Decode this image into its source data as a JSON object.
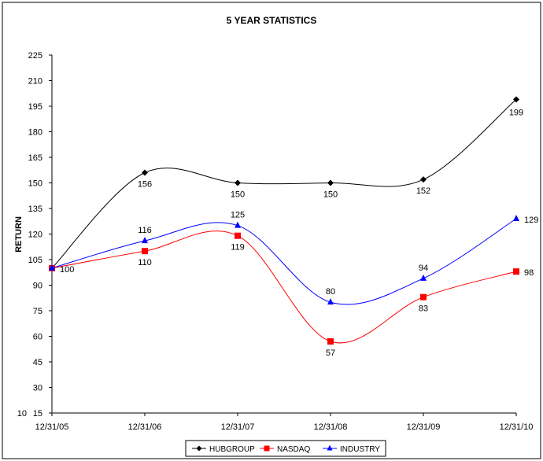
{
  "chart_data": {
    "type": "line",
    "title": "5 YEAR STATISTICS",
    "xlabel": "",
    "ylabel": "RETURN",
    "categories": [
      "12/31/05",
      "12/31/06",
      "12/31/07",
      "12/31/08",
      "12/31/09",
      "12/31/10"
    ],
    "yticks": [
      "15",
      "30",
      "45",
      "60",
      "75",
      "90",
      "105",
      "120",
      "135",
      "150",
      "165",
      "180",
      "195",
      "210",
      "225"
    ],
    "ytick_overlap_label": "10",
    "ylim": [
      15,
      225
    ],
    "grid": false,
    "smoothed": true,
    "legend_position": "bottom",
    "series": [
      {
        "name": "HUBGROUP",
        "color": "#000000",
        "marker": "diamond",
        "values": [
          100,
          156,
          150,
          150,
          152,
          199
        ],
        "labels": [
          "",
          "156",
          "150",
          "150",
          "152",
          "199"
        ]
      },
      {
        "name": "NASDAQ",
        "color": "#ff0000",
        "marker": "square",
        "values": [
          100,
          110,
          119,
          57,
          83,
          98
        ],
        "labels": [
          "100",
          "110",
          "119",
          "57",
          "83",
          "98"
        ]
      },
      {
        "name": "INDUSTRY",
        "color": "#0000ff",
        "marker": "triangle",
        "values": [
          100,
          116,
          125,
          80,
          94,
          129
        ],
        "labels": [
          "",
          "116",
          "125",
          "80",
          "94",
          "129"
        ]
      }
    ]
  }
}
